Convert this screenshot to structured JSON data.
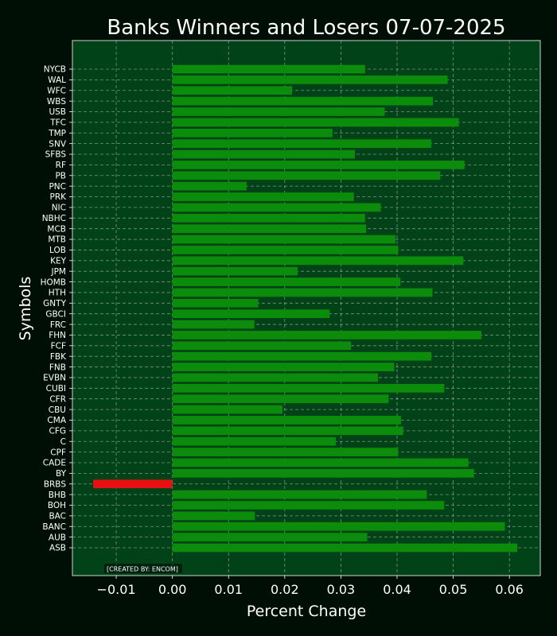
{
  "chart_data": {
    "type": "bar",
    "orientation": "horizontal",
    "title": "Banks Winners and Losers 07-07-2025",
    "xlabel": "Percent Change",
    "ylabel": "Symbols",
    "xlim": [
      -0.0178,
      0.0655
    ],
    "xticks": [
      "−0.01",
      "0.00",
      "0.01",
      "0.02",
      "0.03",
      "0.04",
      "0.05",
      "0.06"
    ],
    "grid": true,
    "credit": "[CREATED BY: ENCOM]",
    "categories": [
      "ASB",
      "AUB",
      "BANC",
      "BAC",
      "BOH",
      "BHB",
      "BRBS",
      "BY",
      "CADE",
      "CPF",
      "C",
      "CFG",
      "CMA",
      "CBU",
      "CFR",
      "CUBI",
      "EVBN",
      "FNB",
      "FBK",
      "FCF",
      "FHN",
      "FRC",
      "GBCI",
      "GNTY",
      "HTH",
      "HOMB",
      "JPM",
      "KEY",
      "LOB",
      "MTB",
      "MCB",
      "NBHC",
      "NIC",
      "PRK",
      "PNC",
      "PB",
      "RF",
      "SFBS",
      "SNV",
      "TMP",
      "TFC",
      "USB",
      "WBS",
      "WFC",
      "WAL",
      "NYCB"
    ],
    "values": [
      0.0614,
      0.0347,
      0.0592,
      0.0147,
      0.0484,
      0.0453,
      -0.0141,
      0.0537,
      0.0527,
      0.0402,
      0.0291,
      0.0411,
      0.0407,
      0.0196,
      0.0385,
      0.0484,
      0.0366,
      0.0395,
      0.0461,
      0.0318,
      0.055,
      0.0146,
      0.028,
      0.0153,
      0.0463,
      0.0406,
      0.0223,
      0.0518,
      0.0402,
      0.0397,
      0.0345,
      0.0343,
      0.0371,
      0.0323,
      0.0132,
      0.0477,
      0.052,
      0.0325,
      0.0461,
      0.0285,
      0.051,
      0.0378,
      0.0464,
      0.0213,
      0.049,
      0.0343
    ],
    "colors": {
      "background": "#000f05",
      "plot_background": "#024219",
      "positive_bar": "#0b8c0b",
      "negative_bar": "#e81010",
      "grid": "#c8c8c8",
      "text": "#ffffff"
    }
  }
}
